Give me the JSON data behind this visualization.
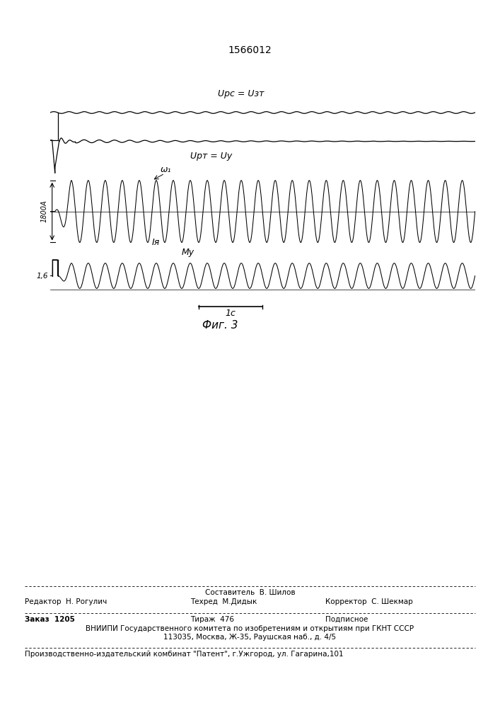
{
  "patent_number": "1566012",
  "fig_caption": "Фиг. 3",
  "background_color": "#ffffff",
  "text_color": "#000000",
  "label_Urc": "Uрс = Uзт",
  "label_Urt": "Uрт = Uу",
  "label_omega": "ω₁",
  "label_Ia": "Iя",
  "label_My": "Mу",
  "label_1800A": "1800А",
  "label_16": "1,6",
  "label_1c": "1c",
  "footer_sestavitel": "Составитель  В. Шилов",
  "footer_redaktor": "Редактор  Н. Рогулич",
  "footer_tekhred": "Техред  М.Дидык",
  "footer_korrektor": "Корректор  С. Шекмар",
  "footer_zakaz": "Заказ  1205",
  "footer_tirazh": "Тираж  476",
  "footer_podpisnoe": "Подписное",
  "footer_vniipI": "ВНИИПИ Государственного комитета по изобретениям и открытиям при ГКНТ СССР",
  "footer_addr": "113035, Москва, Ж-35, Раушская наб., д. 4/5",
  "footer_proizv": "Производственно-издательский комбинат \"Патент\", г.Ужгород, ул. Гагарина,101"
}
